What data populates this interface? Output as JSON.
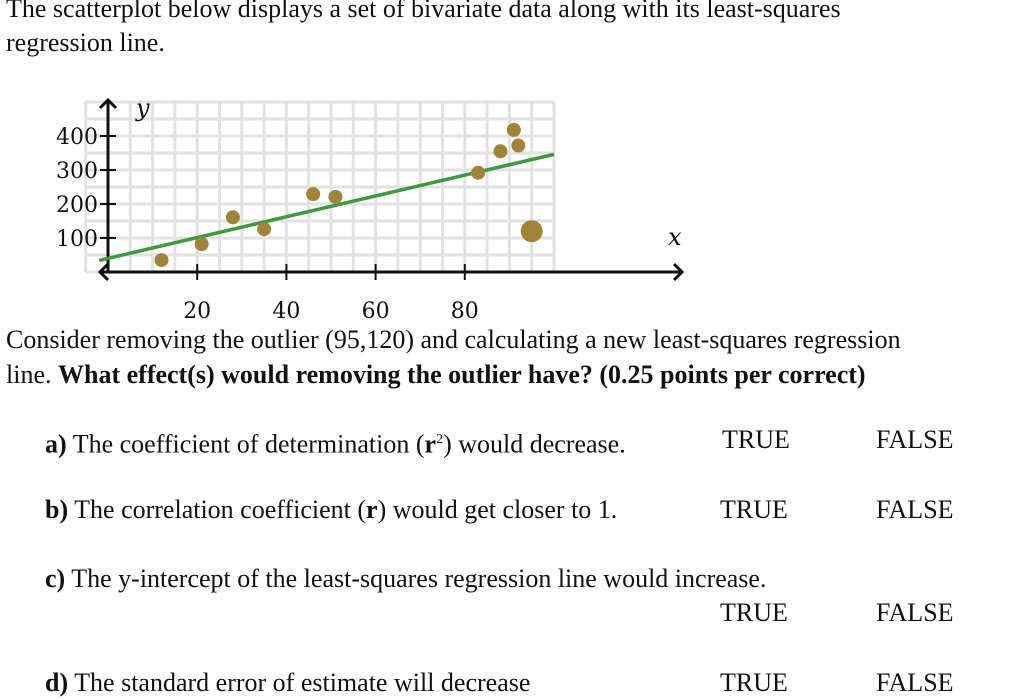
{
  "intro": {
    "line1": "The scatterplot below displays a set of bivariate data along with its least-squares",
    "line2": "regression line."
  },
  "chart_data": {
    "type": "scatter",
    "xlabel": "x",
    "ylabel": "y",
    "xlim": [
      -5,
      100
    ],
    "ylim": [
      0,
      500
    ],
    "x_ticks": [
      "20",
      "40",
      "60",
      "80"
    ],
    "y_ticks": [
      "100",
      "200",
      "300",
      "400"
    ],
    "grid": true,
    "point_color": "#a0843a",
    "line_color": "#3f9a3f",
    "points": [
      {
        "x": 12,
        "y": 35
      },
      {
        "x": 21,
        "y": 82
      },
      {
        "x": 28,
        "y": 161
      },
      {
        "x": 35,
        "y": 126
      },
      {
        "x": 46,
        "y": 229
      },
      {
        "x": 51,
        "y": 221
      },
      {
        "x": 83,
        "y": 292
      },
      {
        "x": 88,
        "y": 355
      },
      {
        "x": 91,
        "y": 418
      },
      {
        "x": 92,
        "y": 372
      }
    ],
    "outlier": {
      "x": 95,
      "y": 120
    },
    "regression_line": {
      "intercept": 40,
      "slope": 3.06
    }
  },
  "question": {
    "line1": "Consider removing the outlier (95,120) and calculating a new least-squares regression",
    "line2_plain": "line.",
    "line2_bold": "What effect(s) would removing the outlier have? (0.25 points per correct)"
  },
  "items": [
    {
      "letter": "a)",
      "text_before": "The coefficient of determination (",
      "sym": "r",
      "sup": "2",
      "text_after": ") would decrease.",
      "true": "TRUE",
      "false": "FALSE"
    },
    {
      "letter": "b)",
      "text_before": "The correlation coefficient (",
      "sym": "r",
      "text_after": ") would get closer to 1.",
      "true": "TRUE",
      "false": "FALSE"
    },
    {
      "letter": "c)",
      "text": "The y-intercept of the least-squares regression line would increase.",
      "true": "TRUE",
      "false": "FALSE"
    },
    {
      "letter": "d)",
      "text": "The standard error of estimate will decrease",
      "true": "TRUE",
      "false": "FALSE"
    }
  ]
}
